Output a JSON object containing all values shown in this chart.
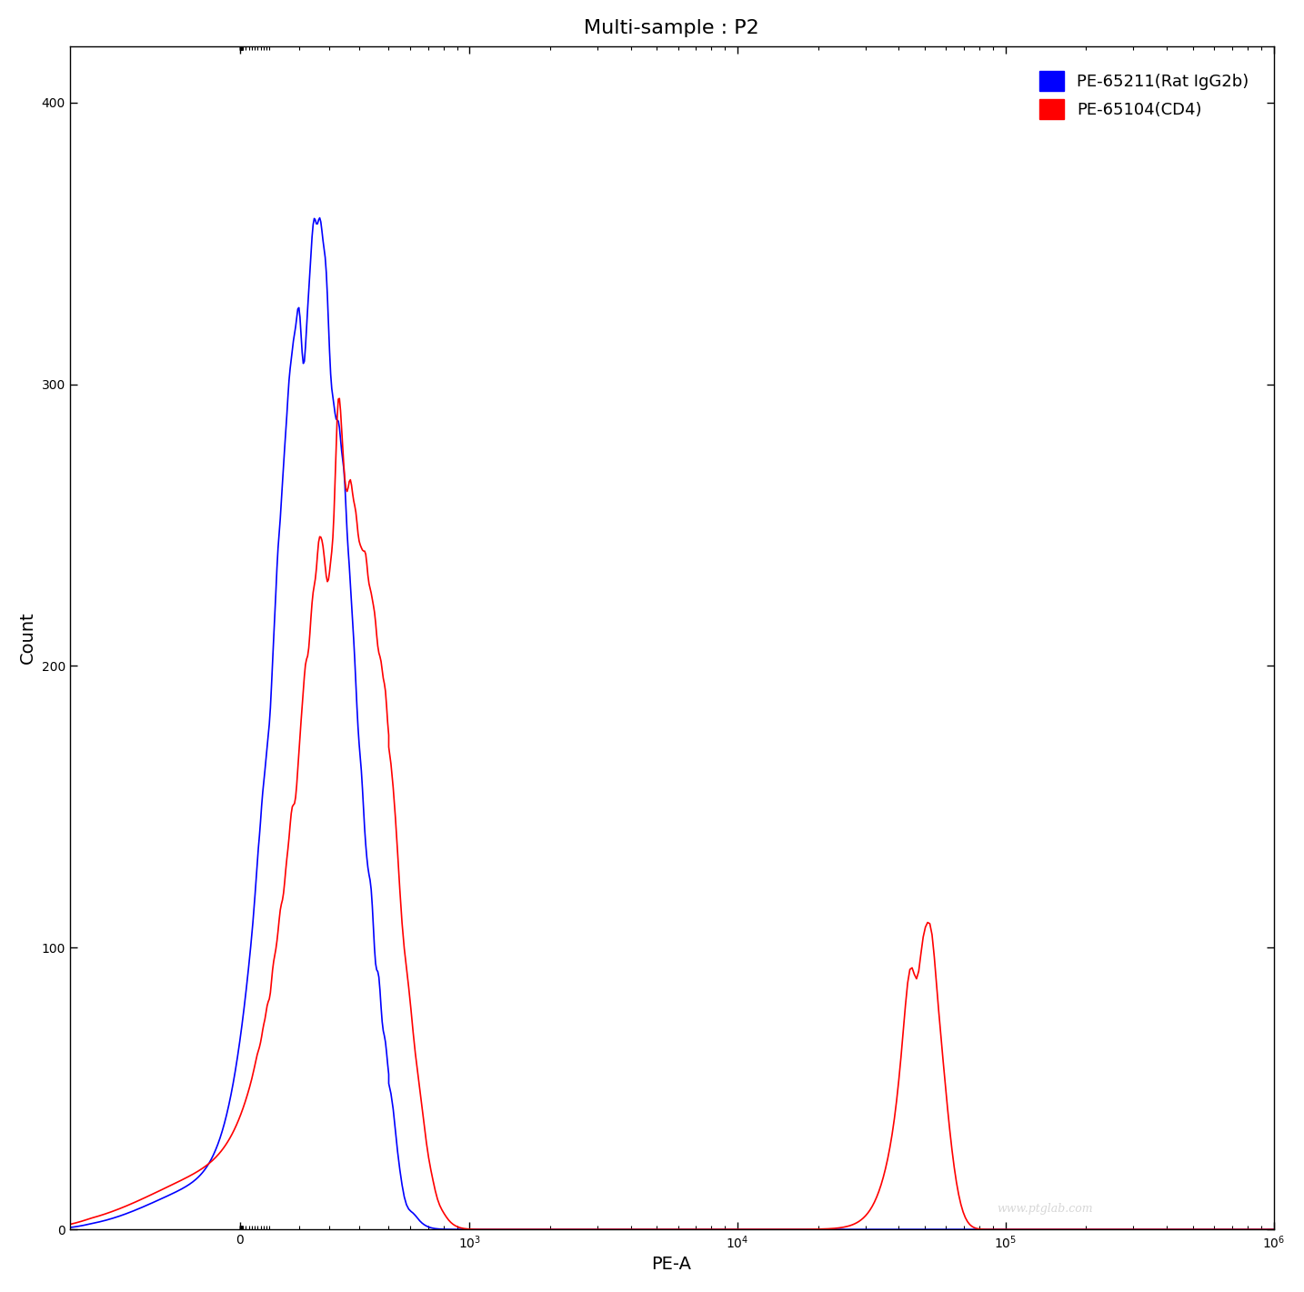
{
  "title": "Multi-sample : P2",
  "xlabel": "PE-A",
  "ylabel": "Count",
  "ylim": [
    0,
    420
  ],
  "yticks": [
    0,
    100,
    200,
    300,
    400
  ],
  "xlim": [
    -600,
    1000000
  ],
  "legend_labels": [
    "PE-65211(Rat IgG2b)",
    "PE-65104(CD4)"
  ],
  "legend_colors": [
    "#0000ff",
    "#ff0000"
  ],
  "watermark": "www.ptglab.com",
  "symlog_linthresh": 500,
  "symlog_linscale": 0.5
}
